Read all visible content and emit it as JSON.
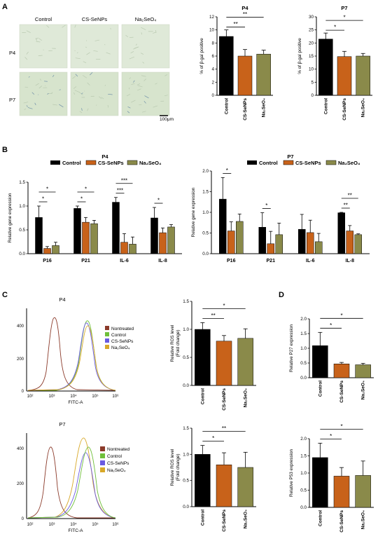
{
  "panel_letters": {
    "a": "A",
    "b": "B",
    "c": "C",
    "d": "D"
  },
  "colors": {
    "control": "#000000",
    "cs_senps": "#c8621a",
    "na2seo4": "#8a8a4a",
    "nontreated_hist": "#8b3a2a",
    "control_hist": "#6fbf3a",
    "cs_senps_hist": "#6a5ae0",
    "na2seo4_hist": "#d8a828"
  },
  "panel_a": {
    "column_labels": [
      "Control",
      "CS-SeNPs",
      "Na₂SeO₄"
    ],
    "row_labels": [
      "P4",
      "P7"
    ],
    "scale_bar_label": "100μm"
  },
  "panel_b": {
    "legend": [
      "Control",
      "CS-SeNPs",
      "Na₂SeO₄"
    ]
  },
  "panel_c": {
    "flow_p4": {
      "title": "P4",
      "xlabel": "FITC-A",
      "legend": [
        "Nontreated",
        "Control",
        "CS-SeNPs",
        "Na₂SeO₄"
      ],
      "x_ticks": [
        "10²",
        "10³",
        "10⁴",
        "10⁵",
        "10⁶"
      ],
      "y_ticks": [
        "0",
        "200",
        "400"
      ]
    },
    "flow_p7": {
      "title": "P7",
      "xlabel": "FITC-A",
      "legend": [
        "Nontreated",
        "Control",
        "CS-SeNPs",
        "Na₂SeO₄"
      ],
      "x_ticks": [
        "10²",
        "10³",
        "10⁴",
        "10⁵",
        "10⁶"
      ],
      "y_ticks": [
        "0",
        "200",
        "400"
      ]
    }
  },
  "chart_data": [
    {
      "id": "a_p4",
      "type": "bar",
      "title": "P4",
      "categories": [
        "Control",
        "CS-SeNPs",
        "Na₂SeO₄"
      ],
      "values": [
        9.0,
        6.0,
        6.3
      ],
      "errors": [
        1.0,
        1.0,
        0.6
      ],
      "ylabel": "% of β-gal positive",
      "ylim": [
        0,
        12
      ],
      "yticks": [
        0,
        2,
        4,
        6,
        8,
        10,
        12
      ],
      "significance": [
        {
          "from": 0,
          "to": 1,
          "label": "**"
        },
        {
          "from": 0,
          "to": 2,
          "label": "**"
        }
      ]
    },
    {
      "id": "a_p7",
      "type": "bar",
      "title": "P7",
      "categories": [
        "Control",
        "CS-SeNPs",
        "Na₂SeO₄"
      ],
      "values": [
        21.5,
        14.8,
        15.0
      ],
      "errors": [
        2.3,
        2.0,
        1.0
      ],
      "ylabel": "% of β-gal positive",
      "ylim": [
        0,
        30
      ],
      "yticks": [
        0,
        5,
        10,
        15,
        20,
        25,
        30
      ],
      "significance": [
        {
          "from": 0,
          "to": 1,
          "label": "*"
        },
        {
          "from": 0,
          "to": 2,
          "label": "*"
        }
      ]
    },
    {
      "id": "b_p4",
      "type": "bar",
      "title": "P4",
      "categories": [
        "P16",
        "P21",
        "IL-6",
        "IL-8"
      ],
      "series": [
        {
          "name": "Control",
          "values": [
            0.76,
            0.95,
            1.08,
            0.75
          ],
          "errors": [
            0.24,
            0.05,
            0.1,
            0.22
          ]
        },
        {
          "name": "CS-SeNPs",
          "values": [
            0.11,
            0.66,
            0.24,
            0.44
          ],
          "errors": [
            0.04,
            0.1,
            0.18,
            0.1
          ]
        },
        {
          "name": "Na₂SeO₄",
          "values": [
            0.17,
            0.63,
            0.2,
            0.56
          ],
          "errors": [
            0.07,
            0.07,
            0.15,
            0.05
          ]
        }
      ],
      "ylabel": "Relative gene expression",
      "ylim": [
        0,
        1.5
      ],
      "yticks": [
        0,
        0.5,
        1.0,
        1.5
      ],
      "significance": [
        {
          "cat": 0,
          "from": 0,
          "to": 1,
          "label": "*"
        },
        {
          "cat": 0,
          "from": 0,
          "to": 2,
          "label": "*"
        },
        {
          "cat": 1,
          "from": 0,
          "to": 1,
          "label": "*"
        },
        {
          "cat": 1,
          "from": 0,
          "to": 2,
          "label": "*"
        },
        {
          "cat": 2,
          "from": 0,
          "to": 1,
          "label": "***"
        },
        {
          "cat": 2,
          "from": 0,
          "to": 2,
          "label": "***"
        },
        {
          "cat": 3,
          "from": 0,
          "to": 1,
          "label": "*"
        }
      ]
    },
    {
      "id": "b_p7",
      "type": "bar",
      "title": "P7",
      "categories": [
        "P16",
        "P21",
        "IL-6",
        "IL-8"
      ],
      "series": [
        {
          "name": "Control",
          "values": [
            1.32,
            0.64,
            0.59,
            0.99
          ],
          "errors": [
            0.52,
            0.35,
            0.36,
            0.01
          ]
        },
        {
          "name": "CS-SeNPs",
          "values": [
            0.55,
            0.24,
            0.51,
            0.55
          ],
          "errors": [
            0.22,
            0.3,
            0.3,
            0.13
          ]
        },
        {
          "name": "Na₂SeO₄",
          "values": [
            0.78,
            0.46,
            0.29,
            0.46
          ],
          "errors": [
            0.18,
            0.28,
            0.2,
            0.02
          ]
        }
      ],
      "ylabel": "Relative gene expression",
      "ylim": [
        0,
        2.0
      ],
      "yticks": [
        0,
        0.5,
        1.0,
        1.5,
        2.0
      ],
      "significance": [
        {
          "cat": 0,
          "from": 0,
          "to": 1,
          "label": "*"
        },
        {
          "cat": 1,
          "from": 0,
          "to": 1,
          "label": "*"
        },
        {
          "cat": 3,
          "from": 0,
          "to": 1,
          "label": "**"
        },
        {
          "cat": 3,
          "from": 0,
          "to": 2,
          "label": "**"
        }
      ]
    },
    {
      "id": "c_ros_p4",
      "type": "bar",
      "categories": [
        "Control",
        "CS-SeNPs",
        "Na₂SeO₄"
      ],
      "values": [
        1.0,
        0.79,
        0.84
      ],
      "errors": [
        0.12,
        0.1,
        0.17
      ],
      "ylabel": "Relative ROS level (Fold change)",
      "ylim": [
        0,
        1.5
      ],
      "yticks": [
        0,
        0.5,
        1.0,
        1.5
      ],
      "significance": [
        {
          "from": 0,
          "to": 1,
          "label": "**"
        },
        {
          "from": 0,
          "to": 2,
          "label": "*"
        }
      ]
    },
    {
      "id": "c_ros_p7",
      "type": "bar",
      "categories": [
        "Control",
        "CS-SeNPs",
        "Na₂SeO₄"
      ],
      "values": [
        1.0,
        0.8,
        0.75
      ],
      "errors": [
        0.17,
        0.23,
        0.29
      ],
      "ylabel": "Relative ROS level (Fold change)",
      "ylim": [
        0,
        1.5
      ],
      "yticks": [
        0,
        0.5,
        1.0,
        1.5
      ],
      "significance": [
        {
          "from": 0,
          "to": 1,
          "label": "*"
        },
        {
          "from": 0,
          "to": 2,
          "label": "**"
        }
      ]
    },
    {
      "id": "d_p27",
      "type": "bar",
      "categories": [
        "Control",
        "CS-SeNPs",
        "Na₂SeO₄"
      ],
      "values": [
        1.09,
        0.47,
        0.44
      ],
      "errors": [
        0.45,
        0.05,
        0.05
      ],
      "ylabel": "Relative P27 expression",
      "ylim": [
        0,
        2.0
      ],
      "yticks": [
        0,
        0.5,
        1.0,
        1.5,
        2.0
      ],
      "significance": [
        {
          "from": 0,
          "to": 1,
          "label": "*"
        },
        {
          "from": 0,
          "to": 2,
          "label": "*"
        }
      ]
    },
    {
      "id": "d_p53",
      "type": "bar",
      "categories": [
        "Control",
        "CS-SeNPs",
        "Na₂SeO₄"
      ],
      "values": [
        1.45,
        0.91,
        0.93
      ],
      "errors": [
        0.42,
        0.25,
        0.42
      ],
      "ylabel": "Relative P53 expression",
      "ylim": [
        0,
        2.0
      ],
      "yticks": [
        0,
        0.5,
        1.0,
        1.5,
        2.0
      ],
      "significance": [
        {
          "from": 0,
          "to": 1,
          "label": "*"
        },
        {
          "from": 0,
          "to": 2,
          "label": "*"
        }
      ]
    }
  ]
}
